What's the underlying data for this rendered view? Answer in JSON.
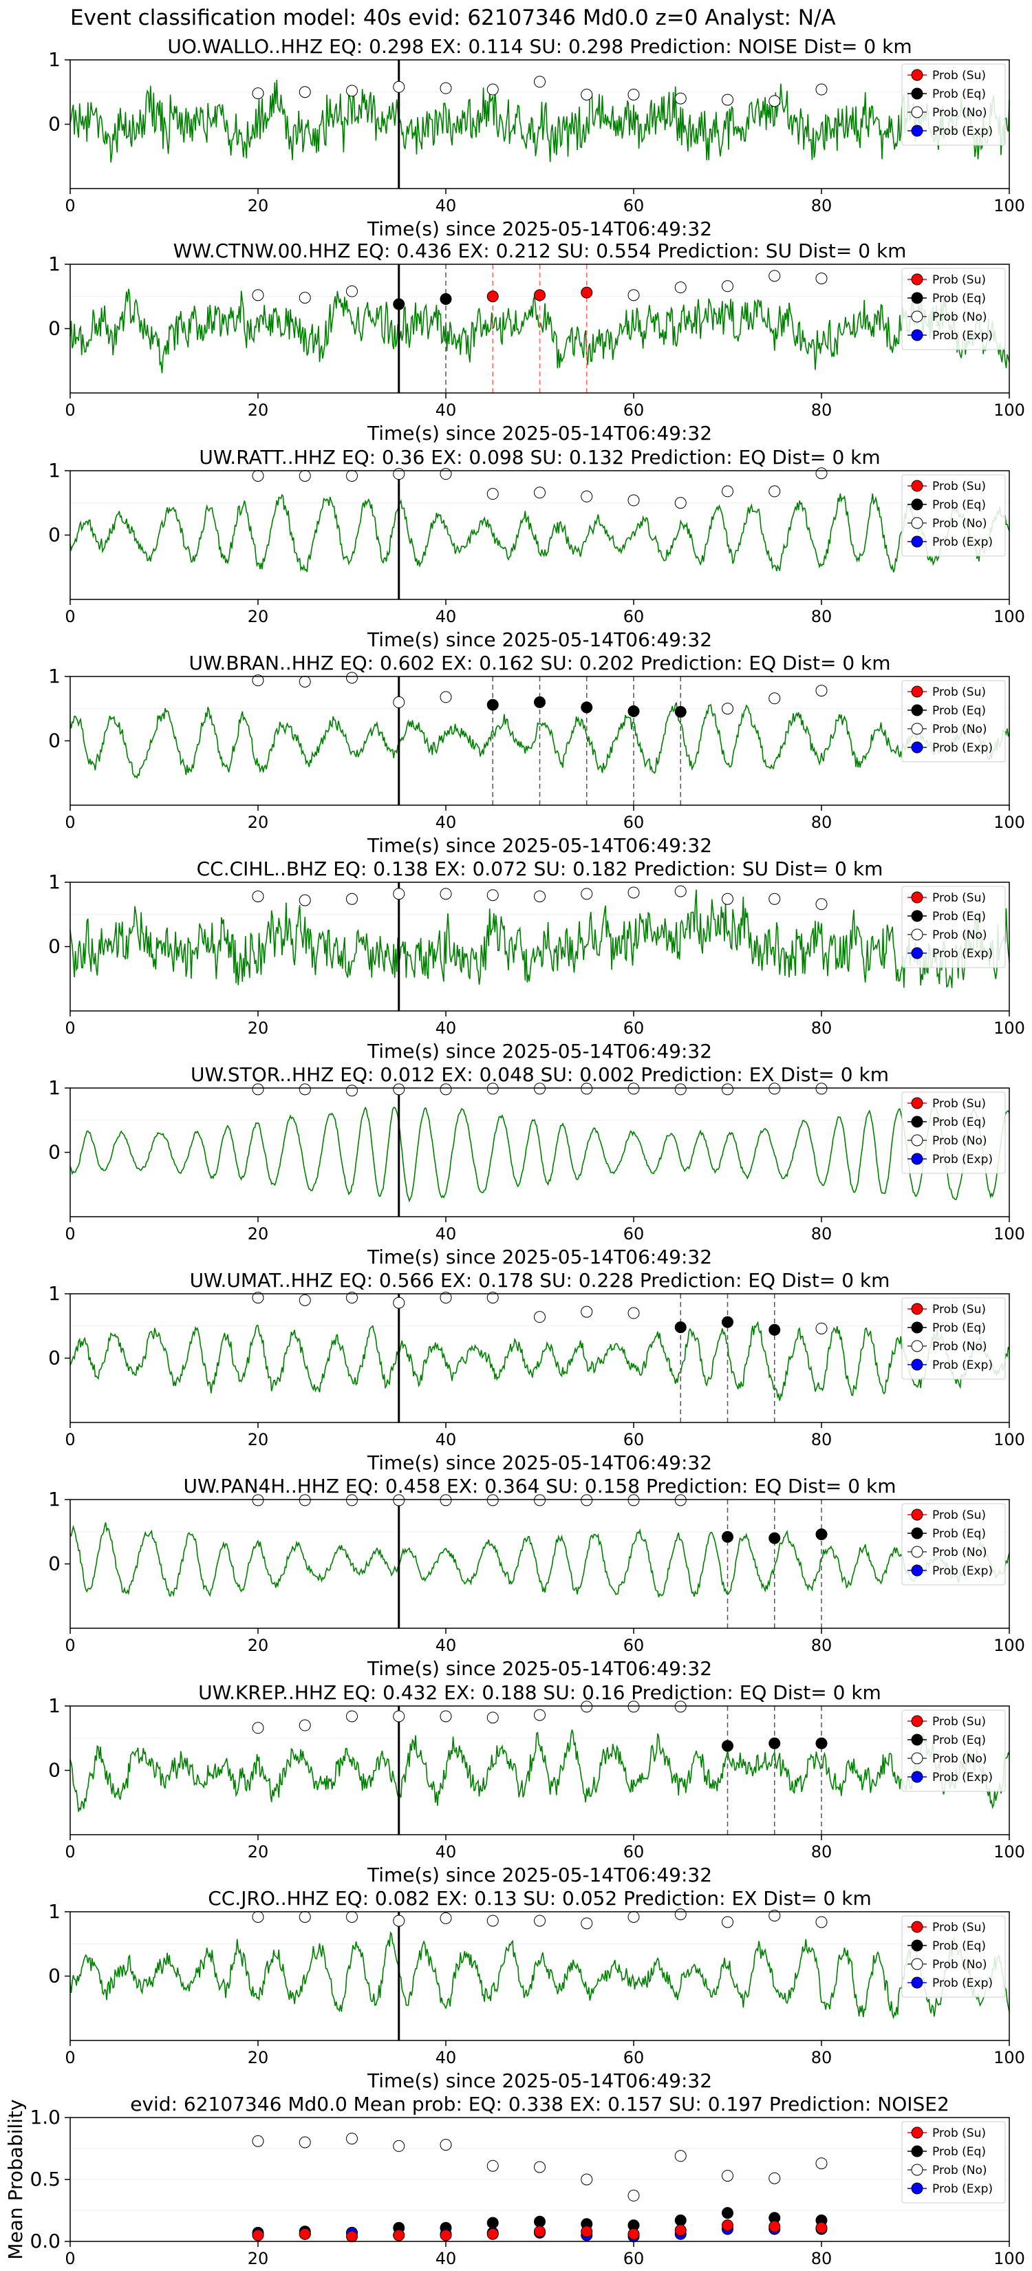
{
  "figure": {
    "suptitle": "Event classification model: 40s evid: 62107346 Md0.0 z=0 Analyst: N/A",
    "xlabel": "Time(s) since 2025-05-14T06:49:32",
    "legend_labels": [
      "Prob (Su)",
      "Prob (Eq)",
      "Prob (No)",
      "Prob (Exp)"
    ],
    "colors": {
      "waveform": "#008000",
      "su": "#ff0000",
      "eq": "#000000",
      "no": "#ffffff",
      "exp": "#0000ff",
      "su_marker_line": "#ff6666",
      "eq_marker_line": "#555555"
    }
  },
  "chart_data": [
    {
      "type": "line",
      "title": "UO.WALLO..HHZ   EQ: 0.298  EX: 0.114  SU: 0.298   Prediction: NOISE    Dist= 0 km",
      "xlim": [
        0,
        100
      ],
      "ylim": [
        -1,
        1
      ],
      "xticks": [
        0,
        20,
        40,
        60,
        80,
        100
      ],
      "yticks": [
        0,
        1
      ],
      "origin_line": 35,
      "waveform": {
        "amp": 0.45,
        "period": 0,
        "noise": 0.75,
        "seed": 1
      },
      "markers": {
        "x": [
          20,
          25,
          30,
          35,
          40,
          45,
          50,
          55,
          60,
          65,
          70,
          75,
          80
        ],
        "y": [
          0.48,
          0.5,
          0.52,
          0.58,
          0.56,
          0.54,
          0.66,
          0.46,
          0.46,
          0.4,
          0.38,
          0.36,
          0.54
        ],
        "class": "no"
      },
      "vlines": []
    },
    {
      "type": "line",
      "title": "WW.CTNW.00.HHZ   EQ: 0.436  EX: 0.212  SU: 0.554   Prediction: SU    Dist= 0 km",
      "xlim": [
        0,
        100
      ],
      "ylim": [
        -1,
        1
      ],
      "xticks": [
        0,
        20,
        40,
        60,
        80,
        100
      ],
      "yticks": [
        0,
        1
      ],
      "origin_line": 35,
      "waveform": {
        "amp": 0.05,
        "period": 0,
        "noise": 0.9,
        "seed": 2
      },
      "markers": {
        "x": [
          20,
          25,
          30,
          35,
          40,
          45,
          50,
          55,
          60,
          65,
          70,
          75,
          80
        ],
        "y": [
          0.52,
          0.48,
          0.58,
          0.38,
          0.46,
          0.5,
          0.52,
          0.56,
          0.52,
          0.64,
          0.66,
          0.82,
          0.78
        ],
        "class": [
          "no",
          "no",
          "no",
          "eq",
          "eq",
          "su",
          "su",
          "su",
          "no",
          "no",
          "no",
          "no",
          "no"
        ]
      },
      "vlines": [
        {
          "x": 40,
          "class": "eq"
        },
        {
          "x": 45,
          "class": "su"
        },
        {
          "x": 50,
          "class": "su"
        },
        {
          "x": 55,
          "class": "su"
        }
      ]
    },
    {
      "type": "line",
      "title": "UW.RATT..HHZ   EQ: 0.36  EX: 0.098  SU: 0.132   Prediction: EQ    Dist= 0 km",
      "xlim": [
        0,
        100
      ],
      "ylim": [
        -1,
        1
      ],
      "xticks": [
        0,
        20,
        40,
        60,
        80,
        100
      ],
      "yticks": [
        0,
        1
      ],
      "origin_line": 35,
      "waveform": {
        "amp": 0.5,
        "period": 4.2,
        "noise": 0.3,
        "seed": 3
      },
      "markers": {
        "x": [
          20,
          25,
          30,
          35,
          40,
          45,
          50,
          55,
          60,
          65,
          70,
          75,
          80
        ],
        "y": [
          0.92,
          0.92,
          0.92,
          0.95,
          0.95,
          0.64,
          0.66,
          0.6,
          0.54,
          0.5,
          0.68,
          0.68,
          0.96
        ],
        "class": "no"
      },
      "vlines": []
    },
    {
      "type": "line",
      "title": "UW.BRAN..HHZ   EQ: 0.602  EX: 0.162  SU: 0.202   Prediction: EQ    Dist= 0 km",
      "xlim": [
        0,
        100
      ],
      "ylim": [
        -1,
        1
      ],
      "xticks": [
        0,
        20,
        40,
        60,
        80,
        100
      ],
      "yticks": [
        0,
        1
      ],
      "origin_line": 35,
      "waveform": {
        "amp": 0.45,
        "period": 4.5,
        "noise": 0.3,
        "seed": 4
      },
      "markers": {
        "x": [
          20,
          25,
          30,
          35,
          40,
          45,
          50,
          55,
          60,
          65,
          70,
          75,
          80
        ],
        "y": [
          0.94,
          0.92,
          0.98,
          0.6,
          0.68,
          0.56,
          0.6,
          0.52,
          0.46,
          0.45,
          0.5,
          0.66,
          0.78
        ],
        "class": [
          "no",
          "no",
          "no",
          "no",
          "no",
          "eq",
          "eq",
          "eq",
          "eq",
          "eq",
          "no",
          "no",
          "no"
        ]
      },
      "vlines": [
        {
          "x": 45,
          "class": "eq"
        },
        {
          "x": 50,
          "class": "eq"
        },
        {
          "x": 55,
          "class": "eq"
        },
        {
          "x": 60,
          "class": "eq"
        },
        {
          "x": 65,
          "class": "eq"
        }
      ]
    },
    {
      "type": "line",
      "title": "CC.CIHL..BHZ   EQ: 0.138  EX: 0.072  SU: 0.182   Prediction: SU    Dist= 0 km",
      "xlim": [
        0,
        100
      ],
      "ylim": [
        -1,
        1
      ],
      "xticks": [
        0,
        20,
        40,
        60,
        80,
        100
      ],
      "yticks": [
        0,
        1
      ],
      "origin_line": 35,
      "waveform": {
        "amp": 0.3,
        "period": 0,
        "noise": 1.0,
        "seed": 5
      },
      "markers": {
        "x": [
          20,
          25,
          30,
          35,
          40,
          45,
          50,
          55,
          60,
          65,
          70,
          75,
          80
        ],
        "y": [
          0.78,
          0.72,
          0.74,
          0.82,
          0.82,
          0.8,
          0.78,
          0.82,
          0.84,
          0.86,
          0.74,
          0.74,
          0.66
        ],
        "class": "no"
      },
      "vlines": []
    },
    {
      "type": "line",
      "title": "UW.STOR..HHZ   EQ: 0.012  EX: 0.048  SU: 0.002   Prediction: EX    Dist= 0 km",
      "xlim": [
        0,
        100
      ],
      "ylim": [
        -1,
        1
      ],
      "xticks": [
        0,
        20,
        40,
        60,
        80,
        100
      ],
      "yticks": [
        0,
        1
      ],
      "origin_line": 35,
      "waveform": {
        "amp": 0.7,
        "period": 3.6,
        "noise": 0.1,
        "seed": 6
      },
      "markers": {
        "x": [
          20,
          25,
          30,
          35,
          40,
          45,
          50,
          55,
          60,
          65,
          70,
          75,
          80
        ],
        "y": [
          0.98,
          0.98,
          0.96,
          0.98,
          0.98,
          0.99,
          0.99,
          0.99,
          0.99,
          0.98,
          0.98,
          0.99,
          0.99
        ],
        "class": "no"
      },
      "vlines": []
    },
    {
      "type": "line",
      "title": "UW.UMAT..HHZ   EQ: 0.566  EX: 0.178  SU: 0.228   Prediction: EQ    Dist= 0 km",
      "xlim": [
        0,
        100
      ],
      "ylim": [
        -1,
        1
      ],
      "xticks": [
        0,
        20,
        40,
        60,
        80,
        100
      ],
      "yticks": [
        0,
        1
      ],
      "origin_line": 35,
      "waveform": {
        "amp": 0.45,
        "period": 3.8,
        "noise": 0.3,
        "seed": 7
      },
      "markers": {
        "x": [
          20,
          25,
          30,
          35,
          40,
          45,
          50,
          55,
          60,
          65,
          70,
          75,
          80
        ],
        "y": [
          0.94,
          0.9,
          0.94,
          0.86,
          0.94,
          0.94,
          0.64,
          0.72,
          0.7,
          0.48,
          0.56,
          0.44,
          0.46
        ],
        "class": [
          "no",
          "no",
          "no",
          "no",
          "no",
          "no",
          "no",
          "no",
          "no",
          "eq",
          "eq",
          "eq",
          "no"
        ]
      },
      "vlines": [
        {
          "x": 65,
          "class": "eq"
        },
        {
          "x": 70,
          "class": "eq"
        },
        {
          "x": 75,
          "class": "eq"
        }
      ]
    },
    {
      "type": "line",
      "title": "UW.PAN4H..HHZ   EQ: 0.458  EX: 0.364  SU: 0.158   Prediction: EQ    Dist= 0 km",
      "xlim": [
        0,
        100
      ],
      "ylim": [
        -1,
        1
      ],
      "xticks": [
        0,
        20,
        40,
        60,
        80,
        100
      ],
      "yticks": [
        0,
        1
      ],
      "origin_line": 35,
      "waveform": {
        "amp": 0.5,
        "period": 4.0,
        "noise": 0.2,
        "seed": 8
      },
      "markers": {
        "x": [
          20,
          25,
          30,
          35,
          40,
          45,
          50,
          55,
          60,
          65,
          70,
          75,
          80
        ],
        "y": [
          0.99,
          0.99,
          0.99,
          0.99,
          0.99,
          0.99,
          0.99,
          0.99,
          0.99,
          0.99,
          0.42,
          0.4,
          0.46
        ],
        "class": [
          "no",
          "no",
          "no",
          "no",
          "no",
          "no",
          "no",
          "no",
          "no",
          "no",
          "eq",
          "eq",
          "eq"
        ]
      },
      "vlines": [
        {
          "x": 70,
          "class": "eq"
        },
        {
          "x": 75,
          "class": "eq"
        },
        {
          "x": 80,
          "class": "eq"
        }
      ]
    },
    {
      "type": "line",
      "title": "UW.KREP..HHZ   EQ: 0.432  EX: 0.188  SU: 0.16   Prediction: EQ    Dist= 0 km",
      "xlim": [
        0,
        100
      ],
      "ylim": [
        -1,
        1
      ],
      "xticks": [
        0,
        20,
        40,
        60,
        80,
        100
      ],
      "yticks": [
        0,
        1
      ],
      "origin_line": 35,
      "waveform": {
        "amp": 0.4,
        "period": 4.2,
        "noise": 0.55,
        "seed": 9
      },
      "markers": {
        "x": [
          20,
          25,
          30,
          35,
          40,
          45,
          50,
          55,
          60,
          65,
          70,
          75,
          80
        ],
        "y": [
          0.66,
          0.7,
          0.84,
          0.84,
          0.84,
          0.82,
          0.86,
          0.99,
          0.99,
          0.99,
          0.38,
          0.42,
          0.42
        ],
        "class": [
          "no",
          "no",
          "no",
          "no",
          "no",
          "no",
          "no",
          "no",
          "no",
          "no",
          "eq",
          "eq",
          "eq"
        ]
      },
      "vlines": [
        {
          "x": 70,
          "class": "eq"
        },
        {
          "x": 75,
          "class": "eq"
        },
        {
          "x": 80,
          "class": "eq"
        }
      ]
    },
    {
      "type": "line",
      "title": "CC.JRO..HHZ   EQ: 0.082  EX: 0.13  SU: 0.052   Prediction: EX    Dist= 0 km",
      "xlim": [
        0,
        100
      ],
      "ylim": [
        -1,
        1
      ],
      "xticks": [
        0,
        20,
        40,
        60,
        80,
        100
      ],
      "yticks": [
        0,
        1
      ],
      "origin_line": 35,
      "waveform": {
        "amp": 0.45,
        "period": 4.0,
        "noise": 0.4,
        "seed": 10
      },
      "markers": {
        "x": [
          20,
          25,
          30,
          35,
          40,
          45,
          50,
          55,
          60,
          65,
          70,
          75,
          80
        ],
        "y": [
          0.92,
          0.92,
          0.92,
          0.86,
          0.9,
          0.86,
          0.86,
          0.82,
          0.92,
          0.96,
          0.84,
          0.94,
          0.84
        ],
        "class": "no"
      },
      "vlines": []
    },
    {
      "type": "scatter",
      "title": "evid: 62107346  Md0.0   Mean prob:   EQ: 0.338  EX: 0.157  SU: 0.197   Prediction: NOISE2",
      "ylabel": "Mean Probability",
      "xlim": [
        0,
        100
      ],
      "ylim": [
        0,
        1
      ],
      "xticks": [
        0,
        20,
        40,
        60,
        80,
        100
      ],
      "yticks": [
        0.0,
        0.5,
        1.0
      ],
      "x": [
        20,
        25,
        30,
        35,
        40,
        45,
        50,
        55,
        60,
        65,
        70,
        75,
        80
      ],
      "series": [
        {
          "class": "no",
          "values": [
            0.81,
            0.8,
            0.83,
            0.77,
            0.78,
            0.61,
            0.6,
            0.5,
            0.37,
            0.69,
            0.53,
            0.51,
            0.63
          ]
        },
        {
          "class": "eq",
          "values": [
            0.07,
            0.08,
            0.07,
            0.11,
            0.11,
            0.15,
            0.16,
            0.14,
            0.13,
            0.17,
            0.23,
            0.19,
            0.17
          ]
        },
        {
          "class": "exp",
          "values": [
            0.06,
            0.06,
            0.07,
            0.05,
            0.06,
            0.07,
            0.07,
            0.05,
            0.04,
            0.06,
            0.1,
            0.1,
            0.1
          ]
        },
        {
          "class": "su",
          "values": [
            0.05,
            0.06,
            0.04,
            0.05,
            0.05,
            0.06,
            0.08,
            0.08,
            0.06,
            0.09,
            0.13,
            0.12,
            0.11
          ]
        }
      ]
    }
  ]
}
